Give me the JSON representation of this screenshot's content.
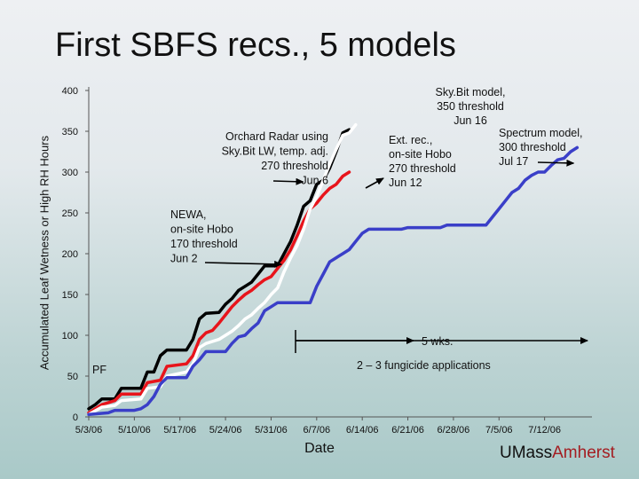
{
  "header": {
    "title": "First SBFS recs., 5 models"
  },
  "logo": {
    "part1": "UMass",
    "part2": "Amherst"
  },
  "colors": {
    "black": "#000000",
    "red": "#e8141b",
    "white": "#ffffff",
    "blue": "#3a3fc8"
  },
  "chart_data": {
    "type": "line",
    "title": "First SBFS recs., 5 models",
    "xlabel": "Date",
    "ylabel": "Accumulated Leaf Wetness or High RH Hours",
    "ylim": [
      0,
      400
    ],
    "x_date_range": [
      "5/3/06",
      "7/19/06"
    ],
    "x_tick_labels": [
      "5/3/06",
      "5/10/06",
      "5/17/06",
      "5/24/06",
      "5/31/06",
      "6/7/06",
      "6/14/06",
      "6/21/06",
      "6/28/06",
      "7/5/06",
      "7/12/06"
    ],
    "y_ticks": [
      0,
      50,
      100,
      150,
      200,
      250,
      300,
      350,
      400
    ],
    "grid": false,
    "series": [
      {
        "color": "black",
        "points": [
          [
            "5/3/06",
            10
          ],
          [
            "5/4/06",
            15
          ],
          [
            "5/5/06",
            22
          ],
          [
            "5/7/06",
            22
          ],
          [
            "5/8/06",
            35
          ],
          [
            "5/11/06",
            35
          ],
          [
            "5/12/06",
            55
          ],
          [
            "5/13/06",
            55
          ],
          [
            "5/14/06",
            75
          ],
          [
            "5/15/06",
            82
          ],
          [
            "5/18/06",
            82
          ],
          [
            "5/19/06",
            95
          ],
          [
            "5/20/06",
            120
          ],
          [
            "5/21/06",
            127
          ],
          [
            "5/23/06",
            128
          ],
          [
            "5/24/06",
            138
          ],
          [
            "5/25/06",
            145
          ],
          [
            "5/26/06",
            155
          ],
          [
            "5/27/06",
            160
          ],
          [
            "5/28/06",
            165
          ],
          [
            "5/29/06",
            175
          ],
          [
            "5/30/06",
            185
          ],
          [
            "6/1/06",
            185
          ],
          [
            "6/2/06",
            200
          ],
          [
            "6/3/06",
            215
          ],
          [
            "6/4/06",
            235
          ],
          [
            "6/5/06",
            258
          ],
          [
            "6/6/06",
            265
          ],
          [
            "6/7/06",
            285
          ],
          [
            "6/8/06",
            290
          ],
          [
            "6/9/06",
            305
          ],
          [
            "6/10/06",
            325
          ],
          [
            "6/11/06",
            348
          ],
          [
            "6/12/06",
            352
          ]
        ]
      },
      {
        "color": "red",
        "points": [
          [
            "5/3/06",
            5
          ],
          [
            "5/5/06",
            15
          ],
          [
            "5/7/06",
            20
          ],
          [
            "5/8/06",
            28
          ],
          [
            "5/11/06",
            28
          ],
          [
            "5/12/06",
            42
          ],
          [
            "5/14/06",
            45
          ],
          [
            "5/15/06",
            62
          ],
          [
            "5/18/06",
            65
          ],
          [
            "5/19/06",
            75
          ],
          [
            "5/20/06",
            95
          ],
          [
            "5/21/06",
            103
          ],
          [
            "5/22/06",
            106
          ],
          [
            "5/23/06",
            115
          ],
          [
            "5/24/06",
            125
          ],
          [
            "5/25/06",
            135
          ],
          [
            "5/26/06",
            143
          ],
          [
            "5/27/06",
            150
          ],
          [
            "5/28/06",
            155
          ],
          [
            "5/29/06",
            162
          ],
          [
            "5/30/06",
            168
          ],
          [
            "5/31/06",
            172
          ],
          [
            "6/2/06",
            192
          ],
          [
            "6/3/06",
            205
          ],
          [
            "6/4/06",
            222
          ],
          [
            "6/5/06",
            240
          ],
          [
            "6/6/06",
            255
          ],
          [
            "6/7/06",
            262
          ],
          [
            "6/8/06",
            272
          ],
          [
            "6/9/06",
            280
          ],
          [
            "6/10/06",
            285
          ],
          [
            "6/11/06",
            295
          ],
          [
            "6/12/06",
            300
          ]
        ]
      },
      {
        "color": "white",
        "points": [
          [
            "5/3/06",
            3
          ],
          [
            "5/5/06",
            12
          ],
          [
            "5/7/06",
            14
          ],
          [
            "5/8/06",
            20
          ],
          [
            "5/11/06",
            22
          ],
          [
            "5/12/06",
            35
          ],
          [
            "5/14/06",
            37
          ],
          [
            "5/15/06",
            50
          ],
          [
            "5/18/06",
            55
          ],
          [
            "5/19/06",
            65
          ],
          [
            "5/20/06",
            85
          ],
          [
            "5/21/06",
            90
          ],
          [
            "5/23/06",
            95
          ],
          [
            "5/24/06",
            100
          ],
          [
            "5/25/06",
            105
          ],
          [
            "5/26/06",
            112
          ],
          [
            "5/27/06",
            120
          ],
          [
            "5/28/06",
            125
          ],
          [
            "5/29/06",
            133
          ],
          [
            "5/30/06",
            140
          ],
          [
            "5/31/06",
            150
          ],
          [
            "6/1/06",
            158
          ],
          [
            "6/2/06",
            178
          ],
          [
            "6/3/06",
            195
          ],
          [
            "6/4/06",
            210
          ],
          [
            "6/5/06",
            230
          ],
          [
            "6/6/06",
            255
          ],
          [
            "6/7/06",
            270
          ],
          [
            "6/8/06",
            290
          ],
          [
            "6/9/06",
            310
          ],
          [
            "6/10/06",
            328
          ],
          [
            "6/11/06",
            345
          ],
          [
            "6/12/06",
            348
          ],
          [
            "6/13/06",
            358
          ]
        ]
      },
      {
        "color": "blue",
        "points": [
          [
            "5/3/06",
            3
          ],
          [
            "5/6/06",
            5
          ],
          [
            "5/7/06",
            8
          ],
          [
            "5/10/06",
            8
          ],
          [
            "5/11/06",
            10
          ],
          [
            "5/12/06",
            15
          ],
          [
            "5/13/06",
            25
          ],
          [
            "5/14/06",
            40
          ],
          [
            "5/15/06",
            48
          ],
          [
            "5/18/06",
            48
          ],
          [
            "5/19/06",
            62
          ],
          [
            "5/20/06",
            70
          ],
          [
            "5/21/06",
            80
          ],
          [
            "5/24/06",
            80
          ],
          [
            "5/25/06",
            90
          ],
          [
            "5/26/06",
            98
          ],
          [
            "5/27/06",
            100
          ],
          [
            "5/28/06",
            108
          ],
          [
            "5/29/06",
            115
          ],
          [
            "5/30/06",
            130
          ],
          [
            "5/31/06",
            135
          ],
          [
            "6/1/06",
            140
          ],
          [
            "6/6/06",
            140
          ],
          [
            "6/7/06",
            160
          ],
          [
            "6/8/06",
            175
          ],
          [
            "6/9/06",
            190
          ],
          [
            "6/10/06",
            195
          ],
          [
            "6/11/06",
            200
          ],
          [
            "6/12/06",
            205
          ],
          [
            "6/13/06",
            215
          ],
          [
            "6/14/06",
            225
          ],
          [
            "6/15/06",
            230
          ],
          [
            "6/20/06",
            230
          ],
          [
            "6/21/06",
            232
          ],
          [
            "6/26/06",
            232
          ],
          [
            "6/27/06",
            235
          ],
          [
            "7/3/06",
            235
          ],
          [
            "7/4/06",
            245
          ],
          [
            "7/5/06",
            255
          ],
          [
            "7/6/06",
            265
          ],
          [
            "7/7/06",
            275
          ],
          [
            "7/8/06",
            280
          ],
          [
            "7/9/06",
            290
          ],
          [
            "7/10/06",
            296
          ],
          [
            "7/11/06",
            300
          ],
          [
            "7/12/06",
            300
          ],
          [
            "7/13/06",
            308
          ],
          [
            "7/14/06",
            315
          ],
          [
            "7/15/06",
            317
          ],
          [
            "7/16/06",
            325
          ],
          [
            "7/17/06",
            330
          ]
        ]
      }
    ],
    "annotations": [
      {
        "id": "orchard",
        "lines": [
          "Orchard Radar using",
          "Sky.Bit LW, temp. adj.",
          "270 threshold",
          "Jun 6"
        ],
        "points_to": [
          "6/6/06",
          265
        ],
        "color": "black"
      },
      {
        "id": "newa",
        "lines": [
          "NEWA,",
          "on-site Hobo",
          "170 threshold",
          "Jun 2"
        ],
        "points_to": [
          "6/2/06",
          185
        ],
        "color": "black"
      },
      {
        "id": "skybit",
        "lines": [
          "Sky.Bit model,",
          "350 threshold",
          "Jun 16"
        ],
        "color": "white"
      },
      {
        "id": "ext",
        "lines": [
          "Ext. rec.,",
          "on-site Hobo",
          "270 threshold",
          "Jun 12"
        ],
        "points_to": [
          "6/12/06",
          282
        ],
        "color": "red"
      },
      {
        "id": "spectrum",
        "lines": [
          "Spectrum model,",
          "300 threshold",
          "Jul 17"
        ],
        "points_to": [
          "7/17/06",
          305
        ],
        "color": "blue"
      },
      {
        "id": "pf",
        "lines": [
          "PF"
        ]
      },
      {
        "id": "wks",
        "lines": [
          "5 wks."
        ]
      },
      {
        "id": "fung",
        "lines": [
          "2 – 3 fungicide applications"
        ]
      }
    ]
  }
}
